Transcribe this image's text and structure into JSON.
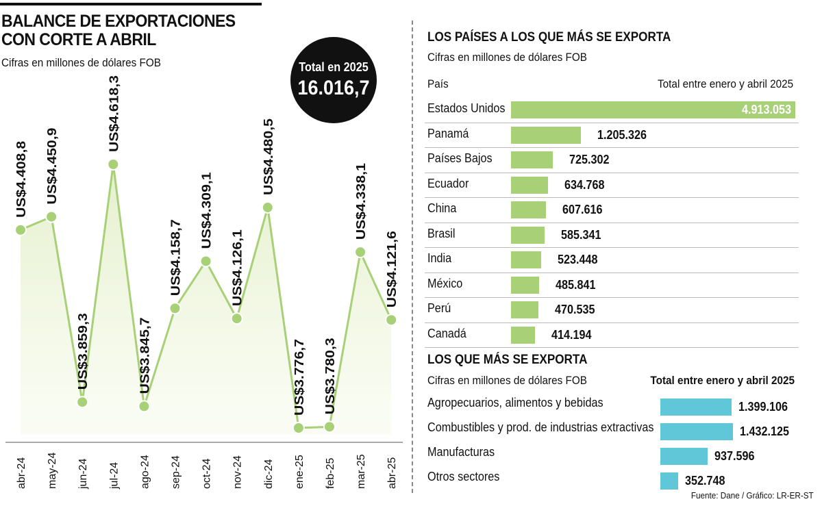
{
  "title_lines": [
    "BALANCE DE EXPORTACIONES",
    "CON CORTE A ABRIL"
  ],
  "subtitle": "Cifras en millones de dólares FOB",
  "total": {
    "label": "Total en 2025",
    "value": "16.016,7"
  },
  "colors": {
    "line": "#a7d077",
    "country_bar": "#a7d077",
    "sector_bar": "#5fc7d8",
    "circle": "#111111"
  },
  "chart_data": [
    {
      "type": "line",
      "title": "BALANCE DE EXPORTACIONES CON CORTE A ABRIL",
      "subtitle": "Cifras en millones de dólares FOB",
      "categories": [
        "abr-24",
        "may-24",
        "jun-24",
        "jul-24",
        "ago-24",
        "sep-24",
        "oct-24",
        "nov-24",
        "dic-24",
        "ene-25",
        "feb-25",
        "mar-25",
        "abr-25"
      ],
      "values": [
        4408.8,
        4450.9,
        3859.3,
        4618.3,
        3845.7,
        4158.7,
        4309.1,
        4126.1,
        4480.5,
        3776.7,
        3780.3,
        4338.1,
        4121.6
      ],
      "labels": [
        "US$4.408,8",
        "US$4.450,9",
        "US$3.859,3",
        "US$4.618,3",
        "US$3.845,7",
        "US$4.158,7",
        "US$4.309,1",
        "US$4.126,1",
        "US$4.480,5",
        "US$3.776,7",
        "US$3.780,3",
        "US$4.338,1",
        "US$4.121,6"
      ],
      "grid": false
    },
    {
      "type": "bar",
      "title": "LOS PAÍSES A LOS QUE MÁS SE EXPORTA",
      "subtitle": "Cifras en millones de dólares FOB",
      "category_header": "País",
      "value_header": "Total entre enero y abril 2025",
      "categories": [
        "Estados Unidos",
        "Panamá",
        "Países Bajos",
        "Ecuador",
        "China",
        "Brasil",
        "India",
        "México",
        "Perú",
        "Canadá"
      ],
      "values": [
        4913053,
        1205326,
        725302,
        634768,
        607616,
        585341,
        523448,
        485841,
        470535,
        414194
      ],
      "labels": [
        "4.913.053",
        "1.205.326",
        "725.302",
        "634.768",
        "607.616",
        "585.341",
        "523.448",
        "485.841",
        "470.535",
        "414.194"
      ]
    },
    {
      "type": "bar",
      "title": "LOS QUE MÁS SE EXPORTA",
      "subtitle": "Cifras en millones de dólares FOB",
      "value_header": "Total entre enero y abril 2025",
      "categories": [
        "Agropecuarios, alimentos y bebidas",
        "Combustibles y prod. de industrias extractivas",
        "Manufacturas",
        "Otros sectores"
      ],
      "values": [
        1399106,
        1432125,
        937596,
        352748
      ],
      "labels": [
        "1.399.106",
        "1.432.125",
        "937.596",
        "352.748"
      ]
    }
  ],
  "source": "Fuente: Dane / Gráfico: LR-ER-ST"
}
